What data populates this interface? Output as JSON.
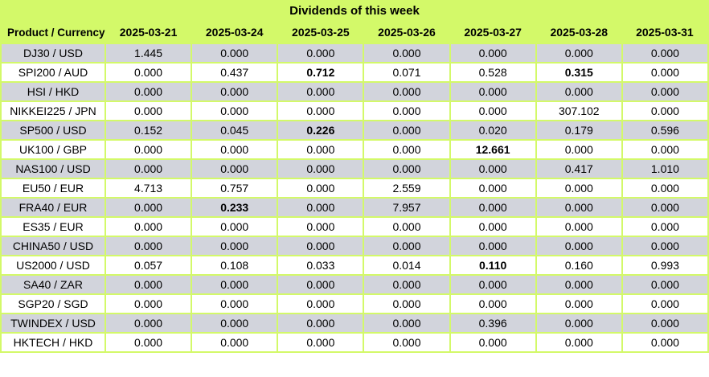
{
  "title": "Dividends of this week",
  "colors": {
    "header_green": "#d3f969",
    "grid_border_green": "#d3f969",
    "row_gray": "#d2d4dc",
    "row_white": "#ffffff",
    "text": "#000000"
  },
  "table": {
    "title": "Dividends of this week",
    "columns": [
      "Product / Currency",
      "2025-03-21",
      "2025-03-24",
      "2025-03-25",
      "2025-03-26",
      "2025-03-27",
      "2025-03-28",
      "2025-03-31"
    ],
    "rows": [
      {
        "product": "DJ30 / USD",
        "values": [
          "1.445",
          "0.000",
          "0.000",
          "0.000",
          "0.000",
          "0.000",
          "0.000"
        ],
        "bold": []
      },
      {
        "product": "SPI200 / AUD",
        "values": [
          "0.000",
          "0.437",
          "0.712",
          "0.071",
          "0.528",
          "0.315",
          "0.000"
        ],
        "bold": [
          2,
          5
        ]
      },
      {
        "product": "HSI / HKD",
        "values": [
          "0.000",
          "0.000",
          "0.000",
          "0.000",
          "0.000",
          "0.000",
          "0.000"
        ],
        "bold": []
      },
      {
        "product": "NIKKEI225 / JPN",
        "values": [
          "0.000",
          "0.000",
          "0.000",
          "0.000",
          "0.000",
          "307.102",
          "0.000"
        ],
        "bold": []
      },
      {
        "product": "SP500 / USD",
        "values": [
          "0.152",
          "0.045",
          "0.226",
          "0.000",
          "0.020",
          "0.179",
          "0.596"
        ],
        "bold": [
          2
        ]
      },
      {
        "product": "UK100 / GBP",
        "values": [
          "0.000",
          "0.000",
          "0.000",
          "0.000",
          "12.661",
          "0.000",
          "0.000"
        ],
        "bold": [
          4
        ]
      },
      {
        "product": "NAS100 / USD",
        "values": [
          "0.000",
          "0.000",
          "0.000",
          "0.000",
          "0.000",
          "0.417",
          "1.010"
        ],
        "bold": []
      },
      {
        "product": "EU50 / EUR",
        "values": [
          "4.713",
          "0.757",
          "0.000",
          "2.559",
          "0.000",
          "0.000",
          "0.000"
        ],
        "bold": []
      },
      {
        "product": "FRA40 / EUR",
        "values": [
          "0.000",
          "0.233",
          "0.000",
          "7.957",
          "0.000",
          "0.000",
          "0.000"
        ],
        "bold": [
          1
        ]
      },
      {
        "product": "ES35 / EUR",
        "values": [
          "0.000",
          "0.000",
          "0.000",
          "0.000",
          "0.000",
          "0.000",
          "0.000"
        ],
        "bold": []
      },
      {
        "product": "CHINA50 / USD",
        "values": [
          "0.000",
          "0.000",
          "0.000",
          "0.000",
          "0.000",
          "0.000",
          "0.000"
        ],
        "bold": []
      },
      {
        "product": "US2000 / USD",
        "values": [
          "0.057",
          "0.108",
          "0.033",
          "0.014",
          "0.110",
          "0.160",
          "0.993"
        ],
        "bold": [
          4
        ]
      },
      {
        "product": "SA40 / ZAR",
        "values": [
          "0.000",
          "0.000",
          "0.000",
          "0.000",
          "0.000",
          "0.000",
          "0.000"
        ],
        "bold": []
      },
      {
        "product": "SGP20 / SGD",
        "values": [
          "0.000",
          "0.000",
          "0.000",
          "0.000",
          "0.000",
          "0.000",
          "0.000"
        ],
        "bold": []
      },
      {
        "product": "TWINDEX / USD",
        "values": [
          "0.000",
          "0.000",
          "0.000",
          "0.000",
          "0.396",
          "0.000",
          "0.000"
        ],
        "bold": []
      },
      {
        "product": "HKTECH / HKD",
        "values": [
          "0.000",
          "0.000",
          "0.000",
          "0.000",
          "0.000",
          "0.000",
          "0.000"
        ],
        "bold": []
      }
    ]
  },
  "chart_data": {
    "type": "table",
    "title": "Dividends of this week",
    "columns": [
      "Product / Currency",
      "2025-03-21",
      "2025-03-24",
      "2025-03-25",
      "2025-03-26",
      "2025-03-27",
      "2025-03-28",
      "2025-03-31"
    ],
    "series": [
      {
        "name": "DJ30 / USD",
        "values": [
          1.445,
          0.0,
          0.0,
          0.0,
          0.0,
          0.0,
          0.0
        ]
      },
      {
        "name": "SPI200 / AUD",
        "values": [
          0.0,
          0.437,
          0.712,
          0.071,
          0.528,
          0.315,
          0.0
        ]
      },
      {
        "name": "HSI / HKD",
        "values": [
          0.0,
          0.0,
          0.0,
          0.0,
          0.0,
          0.0,
          0.0
        ]
      },
      {
        "name": "NIKKEI225 / JPN",
        "values": [
          0.0,
          0.0,
          0.0,
          0.0,
          0.0,
          307.102,
          0.0
        ]
      },
      {
        "name": "SP500 / USD",
        "values": [
          0.152,
          0.045,
          0.226,
          0.0,
          0.02,
          0.179,
          0.596
        ]
      },
      {
        "name": "UK100 / GBP",
        "values": [
          0.0,
          0.0,
          0.0,
          0.0,
          12.661,
          0.0,
          0.0
        ]
      },
      {
        "name": "NAS100 / USD",
        "values": [
          0.0,
          0.0,
          0.0,
          0.0,
          0.0,
          0.417,
          1.01
        ]
      },
      {
        "name": "EU50 / EUR",
        "values": [
          4.713,
          0.757,
          0.0,
          2.559,
          0.0,
          0.0,
          0.0
        ]
      },
      {
        "name": "FRA40 / EUR",
        "values": [
          0.0,
          0.233,
          0.0,
          7.957,
          0.0,
          0.0,
          0.0
        ]
      },
      {
        "name": "ES35 / EUR",
        "values": [
          0.0,
          0.0,
          0.0,
          0.0,
          0.0,
          0.0,
          0.0
        ]
      },
      {
        "name": "CHINA50 / USD",
        "values": [
          0.0,
          0.0,
          0.0,
          0.0,
          0.0,
          0.0,
          0.0
        ]
      },
      {
        "name": "US2000 / USD",
        "values": [
          0.057,
          0.108,
          0.033,
          0.014,
          0.11,
          0.16,
          0.993
        ]
      },
      {
        "name": "SA40 / ZAR",
        "values": [
          0.0,
          0.0,
          0.0,
          0.0,
          0.0,
          0.0,
          0.0
        ]
      },
      {
        "name": "SGP20 / SGD",
        "values": [
          0.0,
          0.0,
          0.0,
          0.0,
          0.0,
          0.0,
          0.0
        ]
      },
      {
        "name": "TWINDEX / USD",
        "values": [
          0.0,
          0.0,
          0.0,
          0.0,
          0.396,
          0.0,
          0.0
        ]
      },
      {
        "name": "HKTECH / HKD",
        "values": [
          0.0,
          0.0,
          0.0,
          0.0,
          0.0,
          0.0,
          0.0
        ]
      }
    ]
  }
}
